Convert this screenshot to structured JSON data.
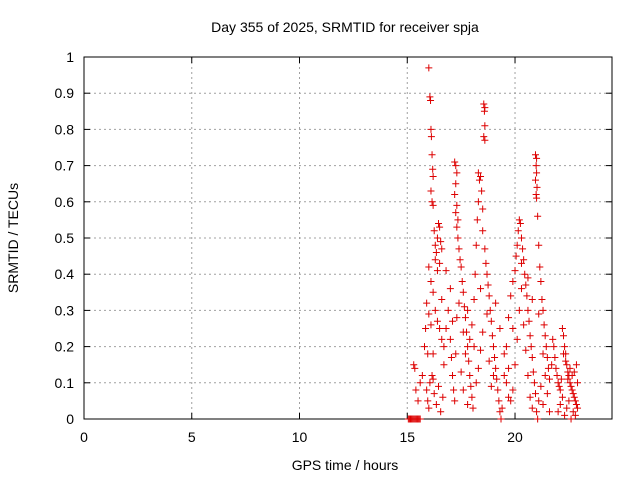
{
  "chart_data": {
    "type": "scatter",
    "title": "Day 355 of 2025, SRMTID for receiver spja",
    "xlabel": "GPS time / hours",
    "ylabel": "SRMTID / TECUs",
    "xlim": [
      0,
      24.5
    ],
    "ylim": [
      0,
      1
    ],
    "xticks": [
      0,
      5,
      10,
      15,
      20
    ],
    "xtick_labels": [
      "0",
      "5",
      "10",
      "15",
      "20"
    ],
    "yticks": [
      0,
      0.1,
      0.2,
      0.3,
      0.4,
      0.5,
      0.6,
      0.7,
      0.8,
      0.9,
      1
    ],
    "ytick_labels": [
      "0",
      "0.1",
      "0.2",
      "0.3",
      "0.4",
      "0.5",
      "0.6",
      "0.7",
      "0.8",
      "0.9",
      "1"
    ],
    "grid": true,
    "marker": "+",
    "marker_color": "#dd0000",
    "series": [
      {
        "name": "SRMTID",
        "points": [
          [
            15.05,
            0.0
          ],
          [
            15.1,
            0.0
          ],
          [
            15.15,
            0.0
          ],
          [
            15.2,
            0.0
          ],
          [
            15.25,
            0.0
          ],
          [
            15.3,
            0.0
          ],
          [
            15.35,
            0.0
          ],
          [
            15.4,
            0.0
          ],
          [
            15.45,
            0.0
          ],
          [
            15.5,
            0.0
          ],
          [
            15.55,
            0.0
          ],
          [
            15.6,
            0.0
          ],
          [
            15.3,
            0.15
          ],
          [
            15.35,
            0.14
          ],
          [
            15.4,
            0.08
          ],
          [
            15.5,
            0.05
          ],
          [
            15.6,
            0.1
          ],
          [
            15.7,
            0.12
          ],
          [
            15.8,
            0.2
          ],
          [
            15.85,
            0.25
          ],
          [
            15.9,
            0.32
          ],
          [
            15.95,
            0.18
          ],
          [
            16.0,
            0.97
          ],
          [
            16.05,
            0.89
          ],
          [
            16.08,
            0.88
          ],
          [
            16.1,
            0.8
          ],
          [
            16.12,
            0.78
          ],
          [
            16.15,
            0.73
          ],
          [
            16.18,
            0.69
          ],
          [
            16.2,
            0.67
          ],
          [
            16.1,
            0.63
          ],
          [
            16.15,
            0.6
          ],
          [
            16.2,
            0.59
          ],
          [
            16.25,
            0.52
          ],
          [
            16.3,
            0.48
          ],
          [
            16.35,
            0.46
          ],
          [
            16.4,
            0.5
          ],
          [
            16.45,
            0.54
          ],
          [
            16.5,
            0.53
          ],
          [
            16.55,
            0.49
          ],
          [
            16.6,
            0.47
          ],
          [
            16.3,
            0.44
          ],
          [
            16.4,
            0.41
          ],
          [
            16.5,
            0.43
          ],
          [
            16.0,
            0.42
          ],
          [
            16.1,
            0.38
          ],
          [
            16.2,
            0.35
          ],
          [
            16.3,
            0.3
          ],
          [
            16.4,
            0.27
          ],
          [
            16.5,
            0.25
          ],
          [
            16.6,
            0.22
          ],
          [
            16.7,
            0.2
          ],
          [
            16.0,
            0.29
          ],
          [
            16.1,
            0.26
          ],
          [
            16.2,
            0.18
          ],
          [
            15.9,
            0.08
          ],
          [
            15.95,
            0.05
          ],
          [
            16.0,
            0.03
          ],
          [
            16.05,
            0.1
          ],
          [
            16.15,
            0.12
          ],
          [
            16.25,
            0.07
          ],
          [
            16.35,
            0.04
          ],
          [
            16.45,
            0.09
          ],
          [
            16.55,
            0.02
          ],
          [
            16.65,
            0.06
          ],
          [
            16.7,
            0.15
          ],
          [
            16.8,
            0.25
          ],
          [
            16.9,
            0.3
          ],
          [
            17.0,
            0.22
          ],
          [
            17.05,
            0.17
          ],
          [
            17.1,
            0.12
          ],
          [
            17.15,
            0.08
          ],
          [
            17.2,
            0.05
          ],
          [
            17.25,
            0.18
          ],
          [
            17.3,
            0.28
          ],
          [
            17.2,
            0.71
          ],
          [
            17.25,
            0.7
          ],
          [
            17.3,
            0.68
          ],
          [
            17.25,
            0.65
          ],
          [
            17.2,
            0.62
          ],
          [
            17.3,
            0.59
          ],
          [
            17.25,
            0.57
          ],
          [
            17.35,
            0.55
          ],
          [
            17.3,
            0.53
          ],
          [
            17.35,
            0.5
          ],
          [
            17.4,
            0.47
          ],
          [
            17.45,
            0.44
          ],
          [
            17.5,
            0.42
          ],
          [
            17.55,
            0.38
          ],
          [
            17.6,
            0.35
          ],
          [
            17.65,
            0.31
          ],
          [
            17.7,
            0.28
          ],
          [
            17.75,
            0.24
          ],
          [
            17.8,
            0.2
          ],
          [
            17.85,
            0.16
          ],
          [
            17.9,
            0.12
          ],
          [
            17.95,
            0.09
          ],
          [
            18.0,
            0.06
          ],
          [
            18.05,
            0.03
          ],
          [
            17.5,
            0.13
          ],
          [
            17.6,
            0.08
          ],
          [
            17.7,
            0.18
          ],
          [
            17.8,
            0.04
          ],
          [
            17.9,
            0.22
          ],
          [
            18.0,
            0.26
          ],
          [
            18.1,
            0.33
          ],
          [
            18.15,
            0.4
          ],
          [
            18.2,
            0.48
          ],
          [
            18.25,
            0.55
          ],
          [
            18.3,
            0.6
          ],
          [
            18.35,
            0.66
          ],
          [
            18.3,
            0.68
          ],
          [
            18.4,
            0.67
          ],
          [
            18.45,
            0.63
          ],
          [
            18.5,
            0.58
          ],
          [
            18.55,
            0.87
          ],
          [
            18.6,
            0.86
          ],
          [
            18.58,
            0.85
          ],
          [
            18.6,
            0.81
          ],
          [
            18.55,
            0.78
          ],
          [
            18.6,
            0.77
          ],
          [
            18.5,
            0.52
          ],
          [
            18.6,
            0.47
          ],
          [
            18.65,
            0.43
          ],
          [
            18.7,
            0.4
          ],
          [
            18.75,
            0.37
          ],
          [
            18.8,
            0.34
          ],
          [
            18.85,
            0.3
          ],
          [
            18.9,
            0.27
          ],
          [
            18.95,
            0.23
          ],
          [
            19.0,
            0.2
          ],
          [
            19.05,
            0.17
          ],
          [
            19.1,
            0.14
          ],
          [
            19.15,
            0.11
          ],
          [
            19.2,
            0.08
          ],
          [
            19.25,
            0.05
          ],
          [
            19.3,
            0.02
          ],
          [
            18.2,
            0.1
          ],
          [
            18.3,
            0.14
          ],
          [
            18.4,
            0.19
          ],
          [
            18.5,
            0.24
          ],
          [
            18.7,
            0.29
          ],
          [
            18.8,
            0.16
          ],
          [
            18.9,
            0.09
          ],
          [
            19.0,
            0.12
          ],
          [
            19.35,
            0.0
          ],
          [
            19.4,
            0.03
          ],
          [
            19.5,
            0.12
          ],
          [
            19.6,
            0.2
          ],
          [
            19.7,
            0.28
          ],
          [
            19.8,
            0.34
          ],
          [
            19.9,
            0.38
          ],
          [
            20.0,
            0.41
          ],
          [
            20.05,
            0.45
          ],
          [
            20.1,
            0.48
          ],
          [
            20.15,
            0.52
          ],
          [
            20.2,
            0.55
          ],
          [
            20.25,
            0.54
          ],
          [
            20.3,
            0.5
          ],
          [
            20.35,
            0.47
          ],
          [
            20.4,
            0.44
          ],
          [
            20.45,
            0.4
          ],
          [
            20.5,
            0.37
          ],
          [
            20.55,
            0.34
          ],
          [
            20.6,
            0.3
          ],
          [
            20.65,
            0.27
          ],
          [
            20.7,
            0.23
          ],
          [
            20.75,
            0.2
          ],
          [
            20.8,
            0.17
          ],
          [
            20.85,
            0.13
          ],
          [
            20.9,
            0.1
          ],
          [
            20.95,
            0.07
          ],
          [
            19.8,
            0.05
          ],
          [
            19.9,
            0.08
          ],
          [
            20.0,
            0.15
          ],
          [
            20.1,
            0.22
          ],
          [
            20.2,
            0.3
          ],
          [
            20.3,
            0.36
          ],
          [
            20.4,
            0.26
          ],
          [
            20.5,
            0.19
          ],
          [
            20.6,
            0.12
          ],
          [
            20.7,
            0.06
          ],
          [
            20.8,
            0.03
          ],
          [
            19.6,
            0.1
          ],
          [
            19.7,
            0.14
          ],
          [
            20.95,
            0.73
          ],
          [
            21.0,
            0.72
          ],
          [
            20.98,
            0.7
          ],
          [
            21.0,
            0.68
          ],
          [
            20.95,
            0.66
          ],
          [
            21.02,
            0.64
          ],
          [
            20.98,
            0.62
          ],
          [
            21.0,
            0.61
          ],
          [
            21.05,
            0.56
          ],
          [
            21.1,
            0.48
          ],
          [
            21.15,
            0.42
          ],
          [
            21.2,
            0.38
          ],
          [
            21.25,
            0.33
          ],
          [
            21.3,
            0.3
          ],
          [
            21.35,
            0.26
          ],
          [
            21.4,
            0.23
          ],
          [
            21.45,
            0.2
          ],
          [
            21.5,
            0.17
          ],
          [
            21.55,
            0.14
          ],
          [
            21.6,
            0.11
          ],
          [
            21.0,
            0.02
          ],
          [
            21.05,
            0.0
          ],
          [
            21.1,
            0.05
          ],
          [
            21.2,
            0.09
          ],
          [
            21.3,
            0.04
          ],
          [
            21.4,
            0.12
          ],
          [
            21.5,
            0.07
          ],
          [
            21.6,
            0.02
          ],
          [
            21.7,
            0.15
          ],
          [
            21.75,
            0.22
          ],
          [
            21.8,
            0.2
          ],
          [
            21.85,
            0.17
          ],
          [
            21.9,
            0.14
          ],
          [
            21.95,
            0.12
          ],
          [
            22.0,
            0.1
          ],
          [
            22.05,
            0.09
          ],
          [
            22.1,
            0.08
          ],
          [
            22.15,
            0.11
          ],
          [
            22.2,
            0.25
          ],
          [
            22.25,
            0.23
          ],
          [
            22.3,
            0.2
          ],
          [
            22.35,
            0.18
          ],
          [
            22.4,
            0.15
          ],
          [
            22.45,
            0.13
          ],
          [
            22.5,
            0.12
          ],
          [
            22.55,
            0.1
          ],
          [
            22.6,
            0.09
          ],
          [
            22.65,
            0.08
          ],
          [
            22.7,
            0.07
          ],
          [
            22.75,
            0.06
          ],
          [
            22.8,
            0.05
          ],
          [
            22.85,
            0.04
          ],
          [
            22.9,
            0.03
          ],
          [
            22.0,
            0.02
          ],
          [
            22.1,
            0.04
          ],
          [
            22.2,
            0.06
          ],
          [
            22.3,
            0.01
          ],
          [
            22.4,
            0.03
          ],
          [
            22.5,
            0.05
          ],
          [
            22.6,
            0.0
          ],
          [
            22.7,
            0.02
          ],
          [
            22.8,
            0.01
          ],
          [
            22.9,
            0.1
          ],
          [
            22.85,
            0.15
          ],
          [
            22.75,
            0.13
          ],
          [
            22.65,
            0.12
          ],
          [
            22.55,
            0.14
          ],
          [
            22.45,
            0.11
          ],
          [
            22.35,
            0.16
          ],
          [
            22.25,
            0.18
          ],
          [
            16.2,
            0.11
          ],
          [
            16.6,
            0.33
          ],
          [
            16.8,
            0.41
          ],
          [
            17.0,
            0.36
          ],
          [
            17.1,
            0.27
          ],
          [
            17.4,
            0.32
          ],
          [
            17.6,
            0.24
          ],
          [
            17.8,
            0.3
          ],
          [
            18.1,
            0.2
          ],
          [
            18.4,
            0.36
          ],
          [
            19.1,
            0.32
          ],
          [
            19.3,
            0.25
          ],
          [
            19.5,
            0.18
          ],
          [
            19.7,
            0.06
          ],
          [
            19.9,
            0.25
          ],
          [
            20.3,
            0.43
          ],
          [
            20.6,
            0.39
          ],
          [
            20.8,
            0.33
          ],
          [
            21.1,
            0.29
          ],
          [
            21.3,
            0.18
          ]
        ]
      }
    ]
  }
}
